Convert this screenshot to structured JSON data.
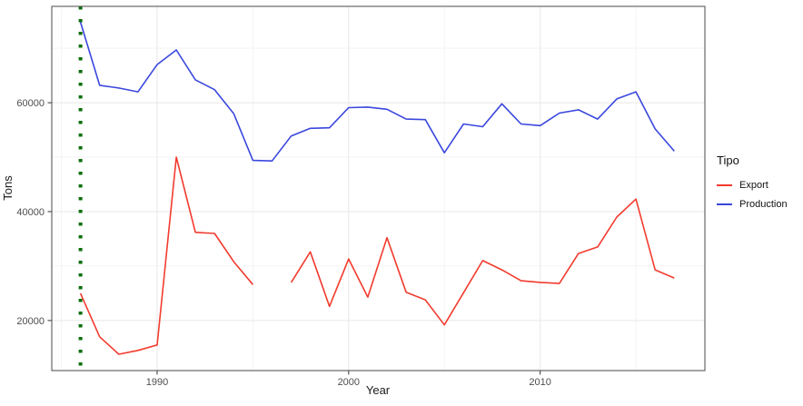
{
  "chart_data": {
    "type": "line",
    "title": "",
    "xlabel": "Year",
    "ylabel": "Tons",
    "x": [
      1986,
      1987,
      1988,
      1989,
      1990,
      1991,
      1992,
      1993,
      1994,
      1995,
      1996,
      1997,
      1998,
      1999,
      2000,
      2001,
      2002,
      2003,
      2004,
      2005,
      2006,
      2007,
      2008,
      2009,
      2010,
      2011,
      2012,
      2013,
      2014,
      2015,
      2016,
      2017
    ],
    "series": [
      {
        "name": "Export",
        "color": "#f23b2e",
        "values": [
          25000,
          17000,
          13800,
          14500,
          15500,
          50000,
          36200,
          36000,
          30800,
          26600,
          null,
          27000,
          32600,
          22600,
          31300,
          24300,
          35200,
          25200,
          23800,
          19200,
          25100,
          31000,
          29300,
          27300,
          27000,
          26800,
          32300,
          33500,
          39000,
          42300,
          29300,
          27800
        ]
      },
      {
        "name": "Production",
        "color": "#3a47dd",
        "values": [
          74800,
          63200,
          62700,
          62000,
          67000,
          69700,
          64200,
          62400,
          58000,
          49400,
          49300,
          53900,
          55300,
          55400,
          59100,
          59200,
          58800,
          57000,
          56900,
          50800,
          56100,
          55600,
          59800,
          56100,
          55800,
          58100,
          58700,
          57000,
          60700,
          62000,
          55200,
          51100
        ]
      }
    ],
    "vline": {
      "x": 1986,
      "color": "#0b6e0b",
      "style": "dotted"
    },
    "xlim": [
      1984.5,
      2018.6
    ],
    "ylim": [
      10800,
      77700
    ],
    "x_major_ticks": [
      1990,
      2000,
      2010
    ],
    "x_minor_ticks": [
      1985,
      1995,
      2005,
      2015
    ],
    "y_major_ticks": [
      20000,
      40000,
      60000
    ],
    "y_minor_ticks": [
      30000,
      50000,
      70000
    ],
    "grid": true,
    "legend": {
      "title": "Tipo",
      "position": "right",
      "entries": [
        {
          "label": "Export",
          "color": "#f23b2e"
        },
        {
          "label": "Production",
          "color": "#3a47dd"
        }
      ]
    }
  },
  "colors": {
    "background": "#ffffff",
    "grid_major": "#e7e7e7",
    "grid_minor": "#f3f3f3",
    "panel_border": "#4a4a4a",
    "tick": "#333333",
    "tick_label": "#4d4d4d",
    "axis_title": "#1a1a1a"
  }
}
